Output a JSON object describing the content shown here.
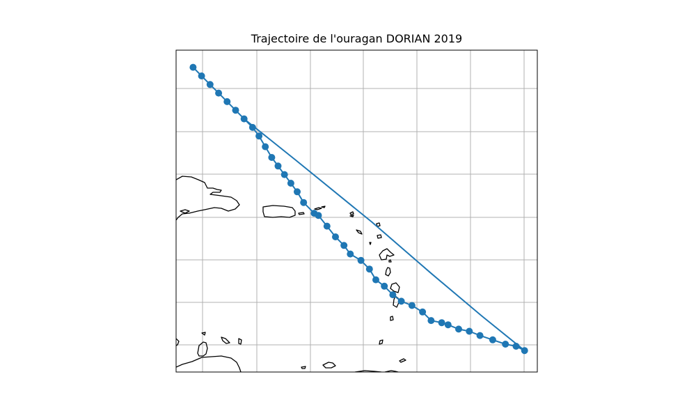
{
  "title": "Trajectoire de l'ouragan DORIAN 2019",
  "colors": {
    "track": "#1f77b4",
    "coast": "#000000",
    "grid": "#b0b0b0",
    "frame": "#000000",
    "background": "#ffffff"
  },
  "chart_data": {
    "type": "scatter",
    "grid": true,
    "track": [
      [
        -67.6,
        20.4
      ],
      [
        -67.4,
        20.2
      ],
      [
        -67.2,
        20.0
      ],
      [
        -67.0,
        19.8
      ],
      [
        -66.8,
        19.6
      ],
      [
        -66.6,
        19.4
      ],
      [
        -66.4,
        19.2
      ],
      [
        -66.2,
        19.0
      ],
      [
        -66.05,
        18.8
      ],
      [
        -65.9,
        18.55
      ],
      [
        -65.75,
        18.3
      ],
      [
        -65.6,
        18.1
      ],
      [
        -65.45,
        17.9
      ],
      [
        -65.3,
        17.7
      ],
      [
        -65.15,
        17.5
      ],
      [
        -65.0,
        17.25
      ],
      [
        -64.75,
        17.0
      ],
      [
        -64.65,
        16.95
      ],
      [
        -64.45,
        16.7
      ],
      [
        -64.25,
        16.45
      ],
      [
        -64.05,
        16.25
      ],
      [
        -63.9,
        16.05
      ],
      [
        -63.65,
        15.9
      ],
      [
        -63.45,
        15.7
      ],
      [
        -63.3,
        15.45
      ],
      [
        -63.1,
        15.3
      ],
      [
        -62.9,
        15.1
      ],
      [
        -62.7,
        14.95
      ],
      [
        -62.45,
        14.85
      ],
      [
        -62.2,
        14.7
      ],
      [
        -62.0,
        14.5
      ],
      [
        -61.75,
        14.45
      ],
      [
        -61.6,
        14.4
      ],
      [
        -61.35,
        14.3
      ],
      [
        -61.1,
        14.25
      ],
      [
        -60.85,
        14.15
      ],
      [
        -60.55,
        14.05
      ],
      [
        -60.25,
        13.95
      ],
      [
        -60.0,
        13.9
      ],
      [
        -59.8,
        13.8
      ],
      [
        -60.8,
        14.6
      ],
      [
        -62.0,
        15.6
      ],
      [
        -63.4,
        16.8
      ],
      [
        -65.2,
        18.25
      ],
      [
        -66.4,
        19.2
      ]
    ]
  },
  "markers": [
    [
      -67.6,
      20.4
    ],
    [
      -67.4,
      20.2
    ],
    [
      -67.2,
      20.0
    ],
    [
      -67.0,
      19.8
    ],
    [
      -66.8,
      19.6
    ],
    [
      -66.6,
      19.4
    ],
    [
      -66.4,
      19.2
    ],
    [
      -66.2,
      19.0
    ],
    [
      -66.05,
      18.8
    ],
    [
      -65.9,
      18.55
    ],
    [
      -65.75,
      18.3
    ],
    [
      -65.6,
      18.1
    ],
    [
      -65.45,
      17.9
    ],
    [
      -65.3,
      17.7
    ],
    [
      -65.15,
      17.5
    ],
    [
      -65.0,
      17.25
    ],
    [
      -64.75,
      17.0
    ],
    [
      -64.65,
      16.95
    ],
    [
      -64.45,
      16.7
    ],
    [
      -64.25,
      16.45
    ],
    [
      -64.05,
      16.25
    ],
    [
      -63.9,
      16.05
    ],
    [
      -63.65,
      15.9
    ],
    [
      -63.45,
      15.7
    ],
    [
      -63.3,
      15.45
    ],
    [
      -63.1,
      15.3
    ],
    [
      -62.9,
      15.1
    ],
    [
      -62.7,
      14.95
    ],
    [
      -62.45,
      14.85
    ],
    [
      -62.2,
      14.7
    ],
    [
      -62.0,
      14.5
    ],
    [
      -61.75,
      14.45
    ],
    [
      -61.6,
      14.4
    ],
    [
      -61.35,
      14.3
    ],
    [
      -61.1,
      14.25
    ],
    [
      -60.85,
      14.15
    ],
    [
      -60.55,
      14.05
    ],
    [
      -60.25,
      13.95
    ],
    [
      -60.0,
      13.9
    ],
    [
      -59.8,
      13.8
    ]
  ]
}
